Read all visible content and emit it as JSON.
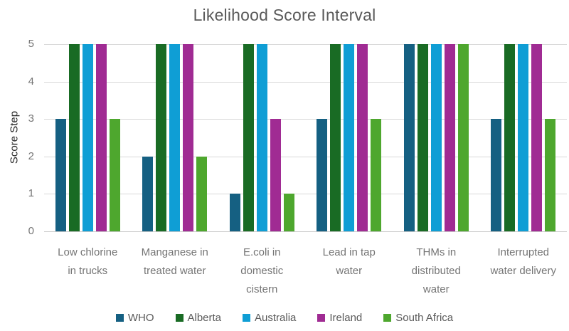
{
  "chart_data": {
    "type": "bar",
    "title": "Likelihood Score Interval",
    "xlabel": "",
    "ylabel": "Score Step",
    "ylim": [
      0,
      5
    ],
    "yticks": [
      0,
      1,
      2,
      3,
      4,
      5
    ],
    "grid": true,
    "grid_color": "#d9d9d9",
    "legend_position": "bottom",
    "categories": [
      "Low chlorine in trucks",
      "Manganese in treated water",
      "E.coli in domestic cistern",
      "Lead in tap water",
      "THMs in distributed water",
      "Interrupted water delivery"
    ],
    "category_lines": [
      [
        "Low chlorine",
        "in trucks"
      ],
      [
        "Manganese in",
        "treated water"
      ],
      [
        "E.coli in",
        "domestic",
        "cistern"
      ],
      [
        "Lead in tap",
        "water"
      ],
      [
        "THMs in",
        "distributed",
        "water"
      ],
      [
        "Interrupted",
        "water delivery"
      ]
    ],
    "series": [
      {
        "name": "WHO",
        "color": "#156082",
        "values": [
          3,
          2,
          1,
          3,
          5,
          3
        ]
      },
      {
        "name": "Alberta",
        "color": "#196B24",
        "values": [
          5,
          5,
          5,
          5,
          5,
          5
        ]
      },
      {
        "name": "Australia",
        "color": "#0F9ED5",
        "values": [
          5,
          5,
          5,
          5,
          5,
          5
        ]
      },
      {
        "name": "Ireland",
        "color": "#A02B93",
        "values": [
          5,
          5,
          3,
          5,
          5,
          5
        ]
      },
      {
        "name": "South Africa",
        "color": "#4EA72E",
        "values": [
          3,
          2,
          1,
          3,
          5,
          3
        ]
      }
    ]
  }
}
